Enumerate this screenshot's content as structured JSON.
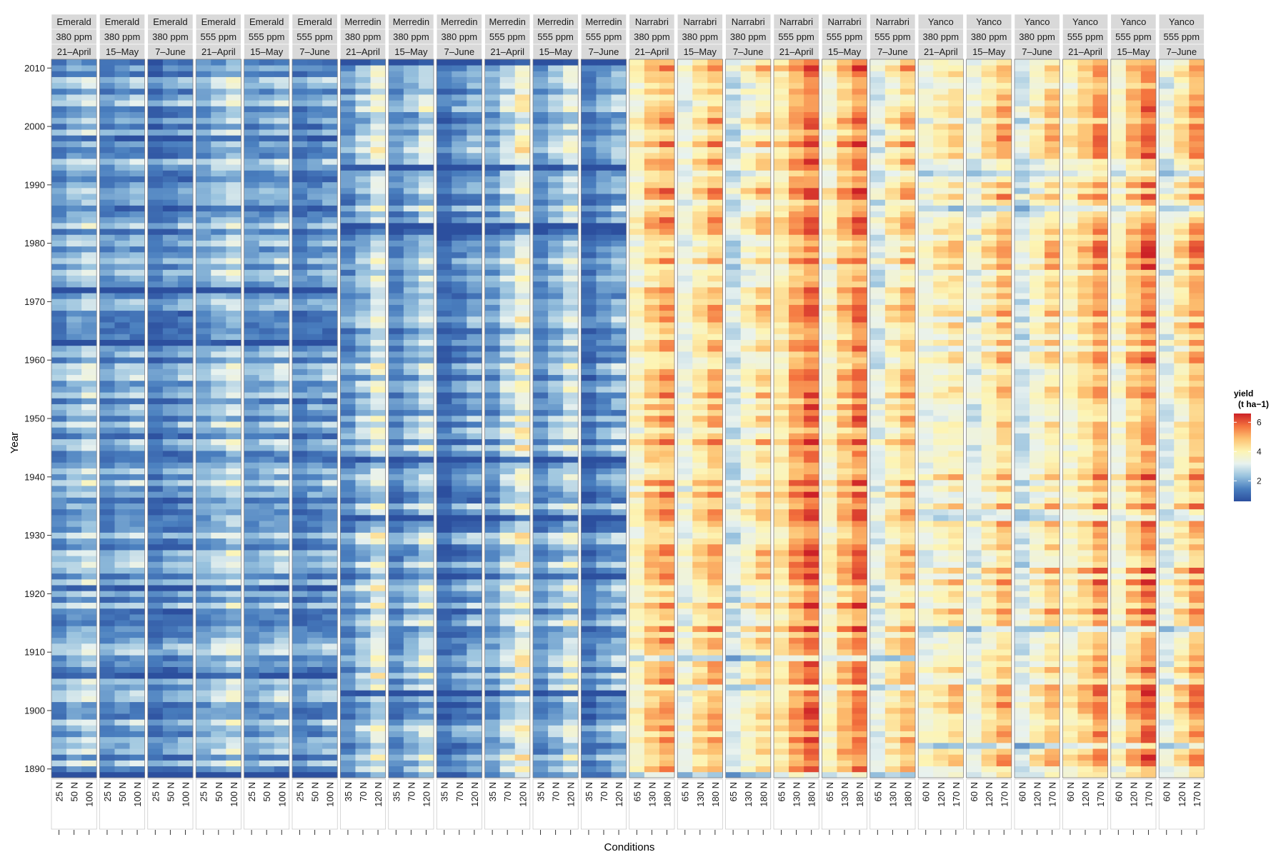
{
  "chart_data": {
    "type": "heatmap",
    "xlabel": "Conditions",
    "ylabel": "Year",
    "y_range": [
      1889,
      2011
    ],
    "y_ticks": [
      1890,
      1900,
      1910,
      1920,
      1930,
      1940,
      1950,
      1960,
      1970,
      1980,
      1990,
      2000,
      2010
    ],
    "legend": {
      "title_line1": "yield",
      "title_line2": "(t ha−1)",
      "range": [
        0.6,
        6.6
      ],
      "ticks": [
        2,
        4,
        6
      ],
      "colors": [
        "#2c4f9e",
        "#4a7fbf",
        "#98c2de",
        "#e8f2ef",
        "#fdf4b3",
        "#fdc171",
        "#f4733e",
        "#cc2127"
      ]
    },
    "facets": [
      {
        "site": "Emerald",
        "co2": "380 ppm",
        "sowing": "21–April",
        "nitrogen": [
          "25 N",
          "50 N",
          "100 N"
        ],
        "mean_yield": [
          1.85,
          2.25,
          2.55
        ]
      },
      {
        "site": "Emerald",
        "co2": "380 ppm",
        "sowing": "15–May",
        "nitrogen": [
          "25 N",
          "50 N",
          "100 N"
        ],
        "mean_yield": [
          1.65,
          1.9,
          2.1
        ]
      },
      {
        "site": "Emerald",
        "co2": "380 ppm",
        "sowing": "7–June",
        "nitrogen": [
          "25 N",
          "50 N",
          "100 N"
        ],
        "mean_yield": [
          1.35,
          1.6,
          1.8
        ]
      },
      {
        "site": "Emerald",
        "co2": "555 ppm",
        "sowing": "21–April",
        "nitrogen": [
          "25 N",
          "50 N",
          "100 N"
        ],
        "mean_yield": [
          2.0,
          2.4,
          2.8
        ]
      },
      {
        "site": "Emerald",
        "co2": "555 ppm",
        "sowing": "15–May",
        "nitrogen": [
          "25 N",
          "50 N",
          "100 N"
        ],
        "mean_yield": [
          1.8,
          2.05,
          2.3
        ]
      },
      {
        "site": "Emerald",
        "co2": "555 ppm",
        "sowing": "7–June",
        "nitrogen": [
          "25 N",
          "50 N",
          "100 N"
        ],
        "mean_yield": [
          1.5,
          1.75,
          2.0
        ]
      },
      {
        "site": "Merredin",
        "co2": "380 ppm",
        "sowing": "21–April",
        "nitrogen": [
          "35 N",
          "70 N",
          "120 N"
        ],
        "mean_yield": [
          1.7,
          2.4,
          3.2
        ]
      },
      {
        "site": "Merredin",
        "co2": "380 ppm",
        "sowing": "15–May",
        "nitrogen": [
          "35 N",
          "70 N",
          "120 N"
        ],
        "mean_yield": [
          1.6,
          2.2,
          2.8
        ]
      },
      {
        "site": "Merredin",
        "co2": "380 ppm",
        "sowing": "7–June",
        "nitrogen": [
          "35 N",
          "70 N",
          "120 N"
        ],
        "mean_yield": [
          1.2,
          1.6,
          2.0
        ]
      },
      {
        "site": "Merredin",
        "co2": "555 ppm",
        "sowing": "21–April",
        "nitrogen": [
          "35 N",
          "70 N",
          "120 N"
        ],
        "mean_yield": [
          1.9,
          2.7,
          3.5
        ]
      },
      {
        "site": "Merredin",
        "co2": "555 ppm",
        "sowing": "15–May",
        "nitrogen": [
          "35 N",
          "70 N",
          "120 N"
        ],
        "mean_yield": [
          1.7,
          2.3,
          3.0
        ]
      },
      {
        "site": "Merredin",
        "co2": "555 ppm",
        "sowing": "7–June",
        "nitrogen": [
          "35 N",
          "70 N",
          "120 N"
        ],
        "mean_yield": [
          1.3,
          1.8,
          2.2
        ]
      },
      {
        "site": "Narrabri",
        "co2": "380 ppm",
        "sowing": "21–April",
        "nitrogen": [
          "65 N",
          "130 N",
          "180 N"
        ],
        "mean_yield": [
          3.8,
          4.7,
          5.1
        ]
      },
      {
        "site": "Narrabri",
        "co2": "380 ppm",
        "sowing": "15–May",
        "nitrogen": [
          "65 N",
          "130 N",
          "180 N"
        ],
        "mean_yield": [
          3.4,
          4.3,
          4.9
        ]
      },
      {
        "site": "Narrabri",
        "co2": "380 ppm",
        "sowing": "7–June",
        "nitrogen": [
          "65 N",
          "130 N",
          "180 N"
        ],
        "mean_yield": [
          3.0,
          3.8,
          4.4
        ]
      },
      {
        "site": "Narrabri",
        "co2": "555 ppm",
        "sowing": "21–April",
        "nitrogen": [
          "65 N",
          "130 N",
          "180 N"
        ],
        "mean_yield": [
          4.2,
          5.2,
          5.8
        ]
      },
      {
        "site": "Narrabri",
        "co2": "555 ppm",
        "sowing": "15–May",
        "nitrogen": [
          "65 N",
          "130 N",
          "180 N"
        ],
        "mean_yield": [
          3.8,
          4.9,
          5.6
        ]
      },
      {
        "site": "Narrabri",
        "co2": "555 ppm",
        "sowing": "7–June",
        "nitrogen": [
          "65 N",
          "130 N",
          "180 N"
        ],
        "mean_yield": [
          3.2,
          4.1,
          4.8
        ]
      },
      {
        "site": "Yanco",
        "co2": "380 ppm",
        "sowing": "21–April",
        "nitrogen": [
          "60 N",
          "120 N",
          "170 N"
        ],
        "mean_yield": [
          3.5,
          3.9,
          4.2
        ]
      },
      {
        "site": "Yanco",
        "co2": "380 ppm",
        "sowing": "15–May",
        "nitrogen": [
          "60 N",
          "120 N",
          "170 N"
        ],
        "mean_yield": [
          3.3,
          4.1,
          4.8
        ]
      },
      {
        "site": "Yanco",
        "co2": "380 ppm",
        "sowing": "7–June",
        "nitrogen": [
          "60 N",
          "120 N",
          "170 N"
        ],
        "mean_yield": [
          3.0,
          3.8,
          4.5
        ]
      },
      {
        "site": "Yanco",
        "co2": "555 ppm",
        "sowing": "21–April",
        "nitrogen": [
          "60 N",
          "120 N",
          "170 N"
        ],
        "mean_yield": [
          3.9,
          4.5,
          5.2
        ]
      },
      {
        "site": "Yanco",
        "co2": "555 ppm",
        "sowing": "15–May",
        "nitrogen": [
          "60 N",
          "120 N",
          "170 N"
        ],
        "mean_yield": [
          3.7,
          4.8,
          5.6
        ]
      },
      {
        "site": "Yanco",
        "co2": "555 ppm",
        "sowing": "7–June",
        "nitrogen": [
          "60 N",
          "120 N",
          "170 N"
        ],
        "mean_yield": [
          3.3,
          4.2,
          5.1
        ]
      }
    ]
  }
}
